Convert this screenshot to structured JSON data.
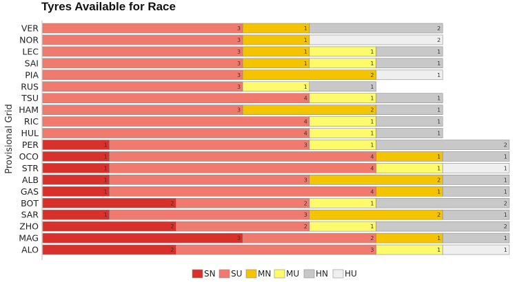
{
  "chart_data": {
    "type": "bar",
    "orientation": "horizontal",
    "stacked": true,
    "title": "Tyres Available for Race",
    "ylabel": "Provisional Grid",
    "xlabel": "",
    "xlim": [
      0,
      7
    ],
    "grid": false,
    "legend_position": "bottom",
    "categories": [
      "VER",
      "NOR",
      "LEC",
      "SAI",
      "PIA",
      "RUS",
      "TSU",
      "HAM",
      "RIC",
      "HUL",
      "PER",
      "OCO",
      "STR",
      "ALB",
      "GAS",
      "BOT",
      "SAR",
      "ZHO",
      "MAG",
      "ALO"
    ],
    "series": [
      {
        "name": "SN",
        "color": "#d8302a",
        "values": [
          0,
          0,
          0,
          0,
          0,
          0,
          0,
          0,
          0,
          0,
          1,
          1,
          1,
          1,
          1,
          2,
          1,
          2,
          3,
          2
        ]
      },
      {
        "name": "SU",
        "color": "#f07a6e",
        "values": [
          3,
          3,
          3,
          3,
          3,
          3,
          4,
          3,
          4,
          4,
          3,
          4,
          4,
          3,
          4,
          2,
          3,
          2,
          2,
          3
        ]
      },
      {
        "name": "MN",
        "color": "#f5c400",
        "values": [
          1,
          1,
          1,
          1,
          2,
          0,
          0,
          2,
          0,
          0,
          0,
          1,
          0,
          2,
          1,
          0,
          2,
          0,
          1,
          0
        ]
      },
      {
        "name": "MU",
        "color": "#fdfa6b",
        "values": [
          0,
          0,
          1,
          1,
          0,
          1,
          1,
          0,
          1,
          1,
          1,
          0,
          1,
          0,
          0,
          1,
          0,
          1,
          0,
          1
        ]
      },
      {
        "name": "HN",
        "color": "#c8c8c8",
        "values": [
          2,
          0,
          1,
          1,
          0,
          1,
          1,
          1,
          1,
          1,
          2,
          1,
          0,
          1,
          1,
          2,
          1,
          2,
          1,
          0
        ]
      },
      {
        "name": "HU",
        "color": "#efefef",
        "values": [
          0,
          2,
          0,
          0,
          1,
          0,
          0,
          0,
          0,
          0,
          0,
          0,
          1,
          0,
          0,
          0,
          0,
          0,
          0,
          1
        ]
      }
    ]
  }
}
